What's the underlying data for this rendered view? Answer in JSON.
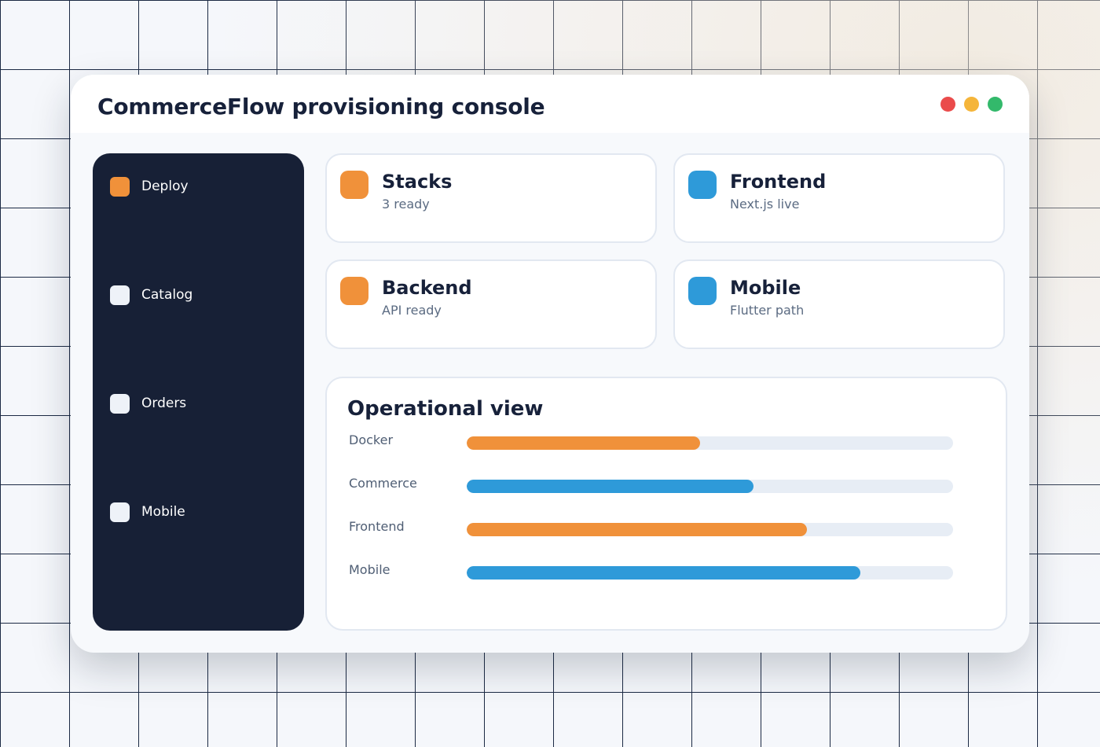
{
  "window": {
    "title": "CommerceFlow provisioning console",
    "controls": [
      {
        "name": "close",
        "color": "#ea4b4b"
      },
      {
        "name": "minimize",
        "color": "#f5b53a"
      },
      {
        "name": "maximize",
        "color": "#33b96b"
      }
    ]
  },
  "sidebar": {
    "items": [
      {
        "label": "Deploy",
        "icon": "deploy-icon",
        "active": true
      },
      {
        "label": "Catalog",
        "icon": "catalog-icon",
        "active": false
      },
      {
        "label": "Orders",
        "icon": "orders-icon",
        "active": false
      },
      {
        "label": "Mobile",
        "icon": "mobile-icon",
        "active": false
      }
    ]
  },
  "cards": [
    {
      "title": "Stacks",
      "subtitle": "3 ready",
      "icon": "stacks-icon",
      "color": "#f0913a"
    },
    {
      "title": "Frontend",
      "subtitle": "Next.js live",
      "icon": "frontend-icon",
      "color": "#2e9ad9"
    },
    {
      "title": "Backend",
      "subtitle": "API ready",
      "icon": "backend-icon",
      "color": "#f0913a"
    },
    {
      "title": "Mobile",
      "subtitle": "Flutter path",
      "icon": "mobile-icon",
      "color": "#2e9ad9"
    }
  ],
  "operational_view": {
    "title": "Operational view",
    "bars": [
      {
        "label": "Docker",
        "value": 0.48,
        "color": "#f0913a"
      },
      {
        "label": "Commerce",
        "value": 0.59,
        "color": "#2e9ad9"
      },
      {
        "label": "Frontend",
        "value": 0.7,
        "color": "#f0913a"
      },
      {
        "label": "Mobile",
        "value": 0.81,
        "color": "#2e9ad9"
      }
    ]
  },
  "colors": {
    "accent_orange": "#f0913a",
    "accent_blue": "#2e9ad9",
    "sidebar_bg": "#172036",
    "inactive_icon": "#eef2f8"
  }
}
